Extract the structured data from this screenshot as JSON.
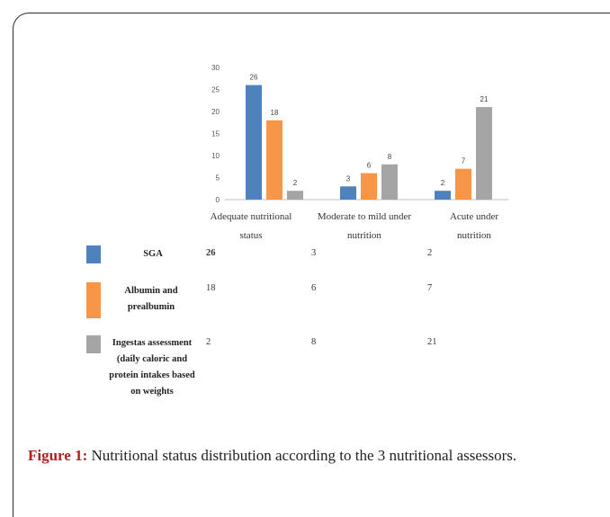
{
  "chart_data": {
    "type": "bar",
    "categories": [
      "Adequate nutritional status",
      "Moderate to mild under nutrition",
      "Acute under nutrition"
    ],
    "series": [
      {
        "name": "SGA",
        "values": [
          26,
          3,
          2
        ],
        "color": "#4f81bd"
      },
      {
        "name": "Albumin and prealbumin",
        "values": [
          18,
          6,
          7
        ],
        "color": "#f79646"
      },
      {
        "name": "Ingestas assessment (daily caloric and protein intakes based on weights",
        "values": [
          2,
          8,
          21
        ],
        "color": "#a5a5a5"
      }
    ],
    "yticks": [
      "30",
      "25",
      "20",
      "15",
      "10",
      "5",
      "0"
    ],
    "ylim": [
      0,
      30
    ],
    "grid": false,
    "legend": "data table below chart"
  },
  "caption": {
    "label": "Figure 1:",
    "text": " Nutritional status distribution according to the 3 nutritional assessors."
  }
}
